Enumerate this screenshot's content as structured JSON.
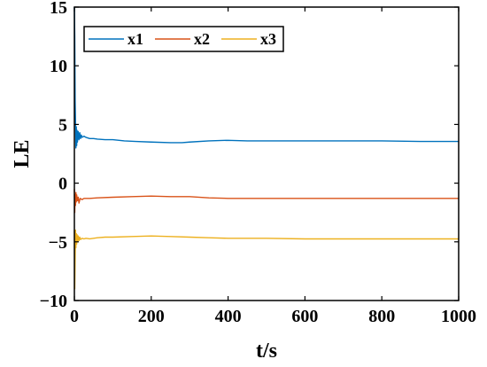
{
  "chart_data": {
    "type": "line",
    "xlabel": "t/s",
    "ylabel": "LE",
    "xlim": [
      0,
      1000
    ],
    "ylim": [
      -10,
      15
    ],
    "xticks": [
      0,
      200,
      400,
      600,
      800,
      1000
    ],
    "xtick_labels": [
      "0",
      "200",
      "400",
      "600",
      "800",
      "1000"
    ],
    "yticks": [
      -10,
      -5,
      0,
      5,
      10,
      15
    ],
    "ytick_labels": [
      "−10",
      "−5",
      "0",
      "5",
      "10",
      "15"
    ],
    "grid": false,
    "legend_position": "top-left",
    "legend_orientation": "horizontal",
    "series": [
      {
        "name": "x1",
        "color": "#0072BD",
        "x": [
          0,
          1,
          2,
          3,
          4,
          5,
          6,
          7,
          8,
          10,
          12,
          14,
          16,
          18,
          20,
          25,
          30,
          40,
          50,
          60,
          80,
          100,
          130,
          160,
          200,
          250,
          280,
          300,
          350,
          400,
          450,
          500,
          600,
          700,
          800,
          900,
          1000
        ],
        "y": [
          15,
          12.5,
          7.0,
          5.2,
          3.0,
          4.8,
          3.2,
          4.5,
          3.5,
          4.4,
          3.7,
          4.3,
          3.8,
          4.1,
          3.9,
          4.0,
          3.9,
          3.8,
          3.8,
          3.75,
          3.7,
          3.7,
          3.6,
          3.55,
          3.5,
          3.45,
          3.45,
          3.5,
          3.6,
          3.65,
          3.6,
          3.6,
          3.6,
          3.6,
          3.6,
          3.55,
          3.55
        ]
      },
      {
        "name": "x2",
        "color": "#D95319",
        "x": [
          0,
          1,
          2,
          3,
          4,
          5,
          6,
          8,
          10,
          12,
          15,
          20,
          25,
          30,
          40,
          60,
          100,
          150,
          200,
          250,
          300,
          350,
          400,
          500,
          600,
          700,
          800,
          900,
          1000
        ],
        "y": [
          -0.5,
          -2.5,
          -1.0,
          -1.9,
          -0.8,
          -1.6,
          -1.0,
          -1.5,
          -1.2,
          -1.7,
          -1.3,
          -1.4,
          -1.3,
          -1.3,
          -1.3,
          -1.25,
          -1.2,
          -1.15,
          -1.1,
          -1.15,
          -1.15,
          -1.25,
          -1.3,
          -1.3,
          -1.3,
          -1.3,
          -1.3,
          -1.3,
          -1.3
        ]
      },
      {
        "name": "x3",
        "color": "#EDB120",
        "x": [
          0,
          1,
          2,
          3,
          4,
          5,
          6,
          7,
          8,
          10,
          12,
          14,
          16,
          20,
          25,
          30,
          40,
          60,
          80,
          100,
          150,
          200,
          250,
          300,
          350,
          400,
          500,
          600,
          700,
          800,
          900,
          1000
        ],
        "y": [
          -4.0,
          -9.0,
          -6.5,
          -4.0,
          -5.5,
          -4.3,
          -5.2,
          -4.4,
          -5.0,
          -4.5,
          -4.9,
          -4.6,
          -4.8,
          -4.7,
          -4.75,
          -4.7,
          -4.75,
          -4.65,
          -4.6,
          -4.6,
          -4.55,
          -4.5,
          -4.55,
          -4.6,
          -4.65,
          -4.7,
          -4.7,
          -4.75,
          -4.75,
          -4.75,
          -4.75,
          -4.75
        ]
      }
    ]
  }
}
